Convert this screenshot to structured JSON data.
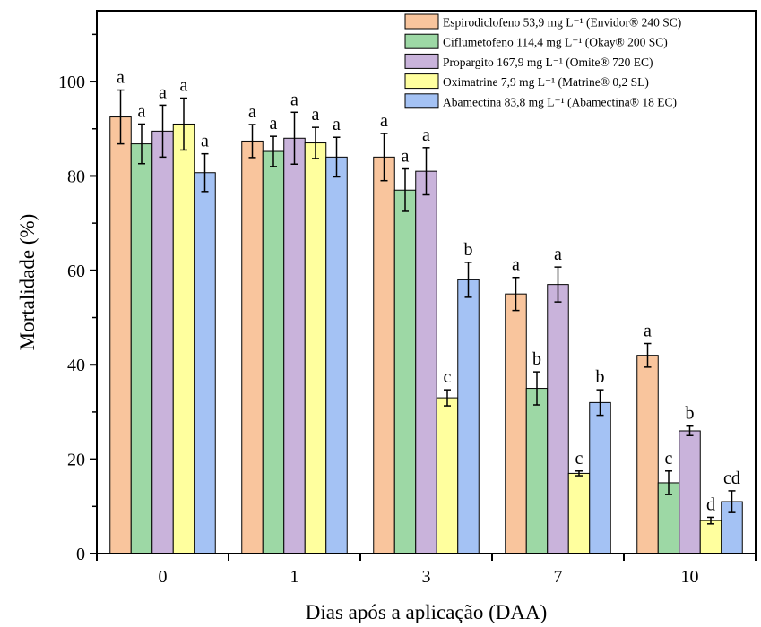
{
  "chart_data": {
    "type": "bar",
    "xlabel": "Dias após a aplicação (DAA)",
    "ylabel": "Mortalidade (%)",
    "ylim": [
      0,
      115
    ],
    "yticks": [
      0,
      20,
      40,
      60,
      80,
      100
    ],
    "categories": [
      "0",
      "1",
      "3",
      "7",
      "10"
    ],
    "legend_position": "top-right",
    "series": [
      {
        "name": "Espirodiclofeno 53,9 mg L⁻¹ (Envidor® 240 SC)",
        "color": "#f9c59d",
        "values": [
          92.5,
          87.4,
          84.0,
          55.0,
          42.0
        ],
        "errors": [
          5.7,
          3.5,
          5.0,
          3.5,
          2.5
        ],
        "letters": [
          "a",
          "a",
          "a",
          "a",
          "a"
        ]
      },
      {
        "name": "Ciflumetofeno 114,4 mg L⁻¹ (Okay® 200 SC)",
        "color": "#9dd8a5",
        "values": [
          86.8,
          85.2,
          77.0,
          35.0,
          15.0
        ],
        "errors": [
          4.2,
          3.2,
          4.5,
          3.5,
          2.5
        ],
        "letters": [
          "a",
          "a",
          "a",
          "b",
          "c"
        ]
      },
      {
        "name": "Propargito 167,9 mg L⁻¹ (Omite® 720 EC)",
        "color": "#c9b3db",
        "values": [
          89.5,
          88.0,
          81.0,
          57.0,
          26.0
        ],
        "errors": [
          5.5,
          5.5,
          5.0,
          3.7,
          1.0
        ],
        "letters": [
          "a",
          "a",
          "a",
          "a",
          "b"
        ]
      },
      {
        "name": "Oximatrine 7,9 mg L⁻¹ (Matrine® 0,2 SL)",
        "color": "#ffff9e",
        "values": [
          91.0,
          87.0,
          33.0,
          17.0,
          7.0
        ],
        "errors": [
          5.5,
          3.3,
          1.7,
          0.5,
          0.7
        ],
        "letters": [
          "a",
          "a",
          "c",
          "c",
          "d"
        ]
      },
      {
        "name": "Abamectina 83,8 mg L⁻¹ (Abamectina® 18 EC)",
        "color": "#a4c2f4",
        "values": [
          80.7,
          84.0,
          58.0,
          32.0,
          11.0
        ],
        "errors": [
          4.0,
          4.2,
          3.7,
          2.7,
          2.3
        ],
        "letters": [
          "a",
          "a",
          "b",
          "b",
          "cd"
        ]
      }
    ]
  }
}
